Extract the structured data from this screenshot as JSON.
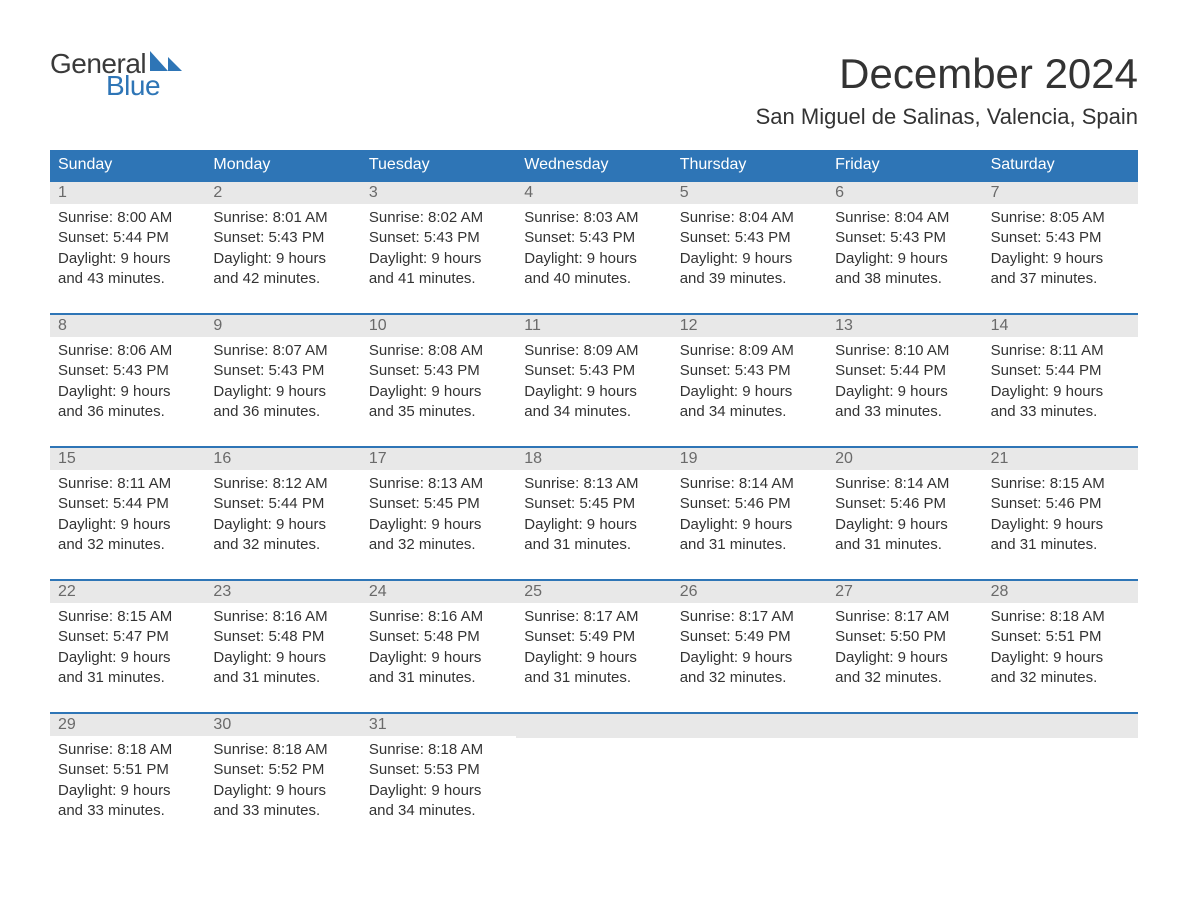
{
  "logo": {
    "text_top": "General",
    "text_bottom": "Blue",
    "top_color": "#3a3a3a",
    "bottom_color": "#2e75b6"
  },
  "title": "December 2024",
  "location": "San Miguel de Salinas, Valencia, Spain",
  "colors": {
    "header_bg": "#2e75b6",
    "header_text": "#ffffff",
    "daynum_bg": "#e8e8e8",
    "daynum_text": "#6a6a6a",
    "body_text": "#333333",
    "row_border": "#2e75b6",
    "page_bg": "#ffffff"
  },
  "typography": {
    "title_fontsize": 42,
    "location_fontsize": 22,
    "weekday_fontsize": 16,
    "daynum_fontsize": 16,
    "content_fontsize": 15
  },
  "weekdays": [
    "Sunday",
    "Monday",
    "Tuesday",
    "Wednesday",
    "Thursday",
    "Friday",
    "Saturday"
  ],
  "weeks": [
    [
      {
        "n": "1",
        "sunrise": "Sunrise: 8:00 AM",
        "sunset": "Sunset: 5:44 PM",
        "dl1": "Daylight: 9 hours",
        "dl2": "and 43 minutes."
      },
      {
        "n": "2",
        "sunrise": "Sunrise: 8:01 AM",
        "sunset": "Sunset: 5:43 PM",
        "dl1": "Daylight: 9 hours",
        "dl2": "and 42 minutes."
      },
      {
        "n": "3",
        "sunrise": "Sunrise: 8:02 AM",
        "sunset": "Sunset: 5:43 PM",
        "dl1": "Daylight: 9 hours",
        "dl2": "and 41 minutes."
      },
      {
        "n": "4",
        "sunrise": "Sunrise: 8:03 AM",
        "sunset": "Sunset: 5:43 PM",
        "dl1": "Daylight: 9 hours",
        "dl2": "and 40 minutes."
      },
      {
        "n": "5",
        "sunrise": "Sunrise: 8:04 AM",
        "sunset": "Sunset: 5:43 PM",
        "dl1": "Daylight: 9 hours",
        "dl2": "and 39 minutes."
      },
      {
        "n": "6",
        "sunrise": "Sunrise: 8:04 AM",
        "sunset": "Sunset: 5:43 PM",
        "dl1": "Daylight: 9 hours",
        "dl2": "and 38 minutes."
      },
      {
        "n": "7",
        "sunrise": "Sunrise: 8:05 AM",
        "sunset": "Sunset: 5:43 PM",
        "dl1": "Daylight: 9 hours",
        "dl2": "and 37 minutes."
      }
    ],
    [
      {
        "n": "8",
        "sunrise": "Sunrise: 8:06 AM",
        "sunset": "Sunset: 5:43 PM",
        "dl1": "Daylight: 9 hours",
        "dl2": "and 36 minutes."
      },
      {
        "n": "9",
        "sunrise": "Sunrise: 8:07 AM",
        "sunset": "Sunset: 5:43 PM",
        "dl1": "Daylight: 9 hours",
        "dl2": "and 36 minutes."
      },
      {
        "n": "10",
        "sunrise": "Sunrise: 8:08 AM",
        "sunset": "Sunset: 5:43 PM",
        "dl1": "Daylight: 9 hours",
        "dl2": "and 35 minutes."
      },
      {
        "n": "11",
        "sunrise": "Sunrise: 8:09 AM",
        "sunset": "Sunset: 5:43 PM",
        "dl1": "Daylight: 9 hours",
        "dl2": "and 34 minutes."
      },
      {
        "n": "12",
        "sunrise": "Sunrise: 8:09 AM",
        "sunset": "Sunset: 5:43 PM",
        "dl1": "Daylight: 9 hours",
        "dl2": "and 34 minutes."
      },
      {
        "n": "13",
        "sunrise": "Sunrise: 8:10 AM",
        "sunset": "Sunset: 5:44 PM",
        "dl1": "Daylight: 9 hours",
        "dl2": "and 33 minutes."
      },
      {
        "n": "14",
        "sunrise": "Sunrise: 8:11 AM",
        "sunset": "Sunset: 5:44 PM",
        "dl1": "Daylight: 9 hours",
        "dl2": "and 33 minutes."
      }
    ],
    [
      {
        "n": "15",
        "sunrise": "Sunrise: 8:11 AM",
        "sunset": "Sunset: 5:44 PM",
        "dl1": "Daylight: 9 hours",
        "dl2": "and 32 minutes."
      },
      {
        "n": "16",
        "sunrise": "Sunrise: 8:12 AM",
        "sunset": "Sunset: 5:44 PM",
        "dl1": "Daylight: 9 hours",
        "dl2": "and 32 minutes."
      },
      {
        "n": "17",
        "sunrise": "Sunrise: 8:13 AM",
        "sunset": "Sunset: 5:45 PM",
        "dl1": "Daylight: 9 hours",
        "dl2": "and 32 minutes."
      },
      {
        "n": "18",
        "sunrise": "Sunrise: 8:13 AM",
        "sunset": "Sunset: 5:45 PM",
        "dl1": "Daylight: 9 hours",
        "dl2": "and 31 minutes."
      },
      {
        "n": "19",
        "sunrise": "Sunrise: 8:14 AM",
        "sunset": "Sunset: 5:46 PM",
        "dl1": "Daylight: 9 hours",
        "dl2": "and 31 minutes."
      },
      {
        "n": "20",
        "sunrise": "Sunrise: 8:14 AM",
        "sunset": "Sunset: 5:46 PM",
        "dl1": "Daylight: 9 hours",
        "dl2": "and 31 minutes."
      },
      {
        "n": "21",
        "sunrise": "Sunrise: 8:15 AM",
        "sunset": "Sunset: 5:46 PM",
        "dl1": "Daylight: 9 hours",
        "dl2": "and 31 minutes."
      }
    ],
    [
      {
        "n": "22",
        "sunrise": "Sunrise: 8:15 AM",
        "sunset": "Sunset: 5:47 PM",
        "dl1": "Daylight: 9 hours",
        "dl2": "and 31 minutes."
      },
      {
        "n": "23",
        "sunrise": "Sunrise: 8:16 AM",
        "sunset": "Sunset: 5:48 PM",
        "dl1": "Daylight: 9 hours",
        "dl2": "and 31 minutes."
      },
      {
        "n": "24",
        "sunrise": "Sunrise: 8:16 AM",
        "sunset": "Sunset: 5:48 PM",
        "dl1": "Daylight: 9 hours",
        "dl2": "and 31 minutes."
      },
      {
        "n": "25",
        "sunrise": "Sunrise: 8:17 AM",
        "sunset": "Sunset: 5:49 PM",
        "dl1": "Daylight: 9 hours",
        "dl2": "and 31 minutes."
      },
      {
        "n": "26",
        "sunrise": "Sunrise: 8:17 AM",
        "sunset": "Sunset: 5:49 PM",
        "dl1": "Daylight: 9 hours",
        "dl2": "and 32 minutes."
      },
      {
        "n": "27",
        "sunrise": "Sunrise: 8:17 AM",
        "sunset": "Sunset: 5:50 PM",
        "dl1": "Daylight: 9 hours",
        "dl2": "and 32 minutes."
      },
      {
        "n": "28",
        "sunrise": "Sunrise: 8:18 AM",
        "sunset": "Sunset: 5:51 PM",
        "dl1": "Daylight: 9 hours",
        "dl2": "and 32 minutes."
      }
    ],
    [
      {
        "n": "29",
        "sunrise": "Sunrise: 8:18 AM",
        "sunset": "Sunset: 5:51 PM",
        "dl1": "Daylight: 9 hours",
        "dl2": "and 33 minutes."
      },
      {
        "n": "30",
        "sunrise": "Sunrise: 8:18 AM",
        "sunset": "Sunset: 5:52 PM",
        "dl1": "Daylight: 9 hours",
        "dl2": "and 33 minutes."
      },
      {
        "n": "31",
        "sunrise": "Sunrise: 8:18 AM",
        "sunset": "Sunset: 5:53 PM",
        "dl1": "Daylight: 9 hours",
        "dl2": "and 34 minutes."
      },
      null,
      null,
      null,
      null
    ]
  ]
}
